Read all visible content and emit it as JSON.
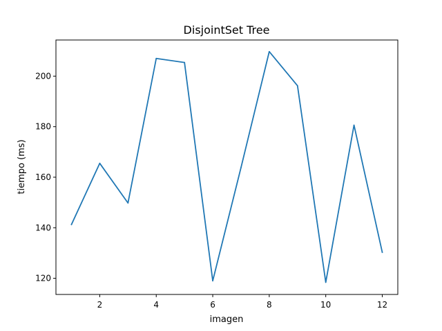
{
  "chart_data": {
    "type": "line",
    "title": "DisjointSet Tree",
    "xlabel": "imagen",
    "ylabel": "tiempo (ms)",
    "xlim": [
      0.45,
      12.55
    ],
    "ylim": [
      113.6,
      214.3
    ],
    "xticks": [
      2,
      4,
      6,
      8,
      10,
      12
    ],
    "yticks": [
      120,
      140,
      160,
      180,
      200
    ],
    "xtick_labels": [
      "2",
      "4",
      "6",
      "8",
      "10",
      "12"
    ],
    "ytick_labels": [
      "120",
      "140",
      "160",
      "180",
      "200"
    ],
    "grid": false,
    "series": [
      {
        "color": "#1f77b4",
        "x": [
          1,
          2,
          3,
          4,
          5,
          6,
          7,
          8,
          9,
          10,
          11,
          12
        ],
        "y": [
          141.3,
          165.5,
          149.8,
          207.0,
          205.4,
          119.0,
          163.8,
          209.7,
          196.2,
          118.4,
          180.6,
          130.3
        ]
      }
    ]
  }
}
